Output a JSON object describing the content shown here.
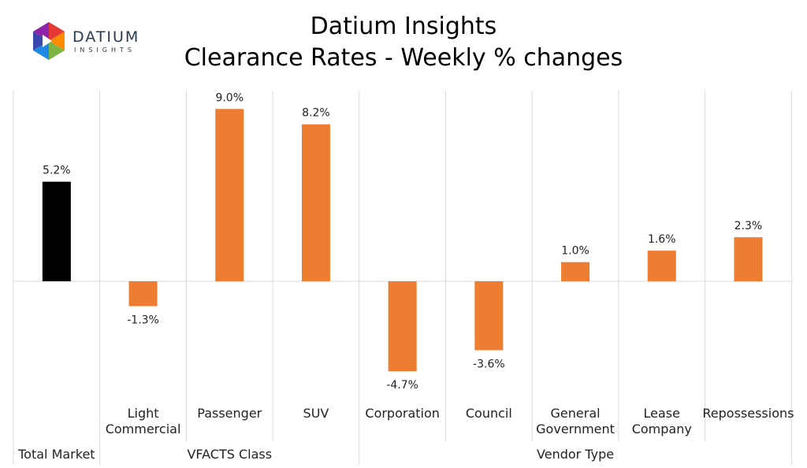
{
  "title": "Datium Insights",
  "subtitle": "Clearance Rates - Weekly % changes",
  "logo": {
    "word": "DATIUM",
    "sub": "INSIGHTS"
  },
  "colors": {
    "highlight": "#000000",
    "bar": "#ED7D31",
    "grid": "#d9d9d9"
  },
  "chart_data": {
    "type": "bar",
    "categories": [
      [
        "Total Market"
      ],
      [
        "Light",
        "Commercial"
      ],
      [
        "Passenger"
      ],
      [
        "SUV"
      ],
      [
        "Corporation"
      ],
      [
        "Council"
      ],
      [
        "General",
        "Government"
      ],
      [
        "Lease",
        "Company"
      ],
      [
        "Repossessions"
      ]
    ],
    "groups": [
      {
        "label": "Total Market",
        "count": 1
      },
      {
        "label": "VFACTS Class",
        "count": 3
      },
      {
        "label": "Vendor Type",
        "count": 5
      }
    ],
    "values": [
      5.2,
      -1.3,
      9.0,
      8.2,
      -4.7,
      -3.6,
      1.0,
      1.6,
      2.3
    ],
    "data_labels": [
      "5.2%",
      "-1.3%",
      "9.0%",
      "8.2%",
      "-4.7%",
      "-3.6%",
      "1.0%",
      "1.6%",
      "2.3%"
    ],
    "ylim": [
      -5.5,
      10
    ],
    "grid": false,
    "legend": "none"
  }
}
